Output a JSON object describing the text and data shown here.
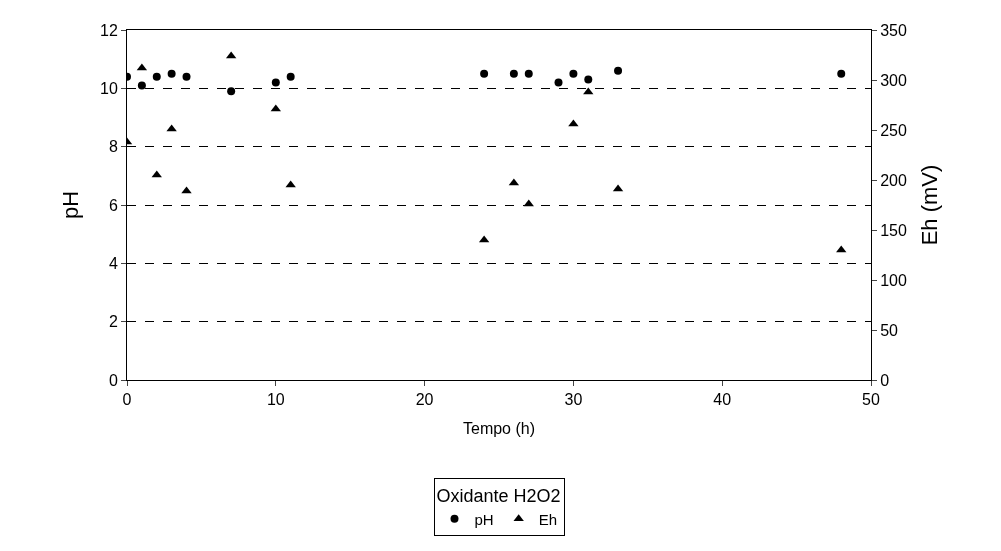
{
  "chart_data": {
    "type": "scatter",
    "xlabel": "Tempo (h)",
    "ylabel": "pH",
    "y2label": "Eh (mV)",
    "legend_title": "Oxidante H2O2",
    "legend": "bottom",
    "grid": "y",
    "xlim": [
      0,
      50
    ],
    "xticks": [
      0,
      10,
      20,
      30,
      40,
      50
    ],
    "ylim": [
      0,
      12
    ],
    "yticks": [
      0,
      2,
      4,
      6,
      8,
      10,
      12
    ],
    "y2lim": [
      0,
      350
    ],
    "y2ticks": [
      0,
      50,
      100,
      150,
      200,
      250,
      300,
      350
    ],
    "series": [
      {
        "name": "pH",
        "color": "#000000",
        "marker": "circle",
        "x": [
          0,
          1,
          2,
          3,
          4,
          7,
          10,
          11,
          24,
          26,
          27,
          29,
          30,
          31,
          33,
          48
        ],
        "values": [
          10.4,
          10.1,
          10.4,
          10.5,
          10.4,
          9.9,
          10.2,
          10.4,
          10.5,
          10.5,
          10.5,
          10.2,
          10.5,
          10.3,
          10.6,
          10.5
        ]
      },
      {
        "name": "Eh",
        "color": "#000000",
        "marker": "triangle",
        "axis": "y2",
        "x": [
          0,
          1,
          2,
          3,
          4,
          7,
          10,
          11,
          24,
          26,
          27,
          30,
          31,
          33,
          48
        ],
        "values": [
          238,
          312,
          205,
          251,
          189,
          324,
          271,
          195,
          140,
          197,
          176,
          256,
          288,
          191,
          130
        ]
      }
    ]
  }
}
